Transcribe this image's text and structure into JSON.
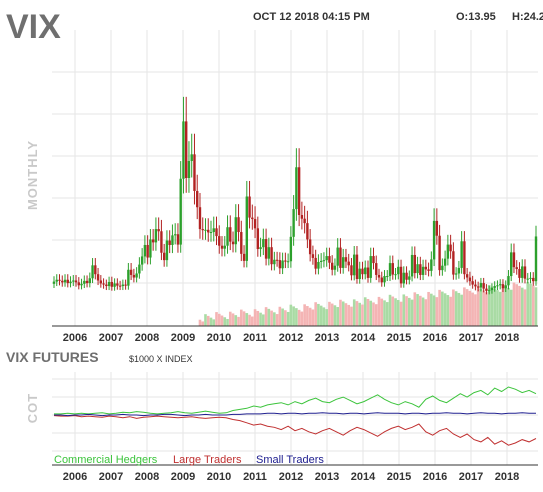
{
  "header": {
    "symbol": "VIX",
    "timestamp": "OCT 12 2018 04:15 PM",
    "open": "O:13.95",
    "high": "H:24.2"
  },
  "colors": {
    "up": "#2ca02c",
    "down": "#b22222",
    "vol_up": "#a9dba4",
    "vol_down": "#f4b4b4",
    "commercial": "#3cc43c",
    "large": "#c03030",
    "small": "#202090",
    "grid": "#e6e6e6"
  },
  "chart_data": [
    {
      "type": "candlestick",
      "panel": "price",
      "ylabel": "MONTHLY",
      "x_start": "2005-06",
      "interval": "month",
      "ylim": [
        0,
        80
      ],
      "x_tick_labels": [
        "2006",
        "2007",
        "2008",
        "2009",
        "2010",
        "2011",
        "2012",
        "2013",
        "2014",
        "2015",
        "2016",
        "2017",
        "2018"
      ],
      "closes": [
        12.0,
        12.5,
        12.2,
        11.8,
        12.5,
        11.6,
        12.0,
        12.3,
        11.8,
        11.0,
        11.4,
        12.2,
        11.6,
        12.9,
        16.4,
        14.0,
        12.3,
        11.5,
        11.2,
        10.8,
        11.9,
        10.6,
        11.5,
        10.9,
        10.8,
        11.2,
        10.9,
        15.2,
        13.8,
        13.1,
        14.2,
        16.6,
        18.8,
        21.9,
        18.5,
        23.4,
        22.6,
        26.2,
        25.6,
        19.8,
        17.8,
        23.1,
        21.9,
        24.5,
        24.8,
        22.0,
        39.8,
        55.3,
        40.0,
        44.6,
        46.4,
        36.5,
        32.1,
        26.2,
        25.9,
        26.0,
        25.3,
        25.4,
        26.4,
        24.3,
        21.7,
        20.9,
        21.7,
        26.7,
        22.8,
        22.1,
        29.4,
        25.4,
        19.5,
        17.6,
        35.0,
        29.3,
        28.9,
        26.4,
        20.8,
        21.3,
        23.5,
        18.2,
        21.3,
        16.7,
        17.9,
        17.8,
        15.6,
        17.7,
        17.4,
        17.5,
        24.1,
        31.6,
        42.9,
        30.0,
        29.0,
        27.8,
        23.4,
        19.4,
        18.4,
        15.5,
        17.3,
        17.6,
        17.8,
        18.9,
        17.1,
        15.2,
        16.3,
        21.2,
        15.7,
        18.6,
        17.4,
        16.4,
        13.7,
        19.3,
        12.7,
        15.5,
        14.0,
        15.8,
        13.0,
        18.9,
        17.0,
        13.8,
        13.1,
        11.8,
        13.5,
        13.5,
        17.0,
        13.9,
        14.0,
        16.0,
        11.5,
        14.4,
        12.5,
        13.4,
        19.2,
        14.3,
        16.7,
        13.8,
        16.0,
        15.3,
        14.9,
        18.0,
        28.4,
        24.4,
        15.1,
        16.3,
        18.2,
        22.0,
        20.2,
        13.9,
        14.2,
        15.7,
        22.9,
        14.0,
        13.1,
        12.1,
        11.2,
        10.7,
        10.4,
        11.6,
        10.1,
        9.5,
        9.7,
        10.3,
        10.8,
        11.0,
        11.3,
        10.2,
        11.0,
        13.5,
        19.9,
        15.9,
        15.4,
        13.0,
        16.1,
        12.8,
        12.8,
        13.0,
        12.1,
        24.2
      ],
      "x": "monthly from 2005-06 to 2018-10",
      "volume_unit": "relative"
    },
    {
      "type": "line",
      "panel": "cot",
      "title": "VIX FUTURES",
      "subtitle": "$1000 X INDEX",
      "ylabel": "COT",
      "x_tick_labels": [
        "2006",
        "2007",
        "2008",
        "2009",
        "2010",
        "2011",
        "2012",
        "2013",
        "2014",
        "2015",
        "2016",
        "2017",
        "2018"
      ],
      "series": [
        {
          "name": "Commercial Hedgers",
          "values": [
            2,
            2,
            3,
            2,
            3,
            2,
            3,
            4,
            2,
            3,
            5,
            4,
            6,
            5,
            3,
            2,
            3,
            4,
            6,
            4,
            3,
            5,
            7,
            5,
            3,
            4,
            8,
            10,
            12,
            16,
            14,
            18,
            20,
            22,
            18,
            24,
            20,
            26,
            30,
            24,
            22,
            28,
            32,
            26,
            20,
            24,
            30,
            36,
            28,
            22,
            18,
            24,
            20,
            14,
            28,
            34,
            26,
            22,
            30,
            38,
            32,
            40,
            44,
            36,
            48,
            42,
            50,
            46,
            40,
            44,
            38
          ]
        },
        {
          "name": "Large Traders",
          "values": [
            -1,
            -2,
            -2,
            -1,
            -3,
            -2,
            -3,
            -4,
            -2,
            -3,
            -5,
            -3,
            -6,
            -4,
            -3,
            -2,
            -3,
            -4,
            -5,
            -4,
            -3,
            -5,
            -6,
            -5,
            -4,
            -5,
            -8,
            -10,
            -14,
            -18,
            -16,
            -20,
            -22,
            -26,
            -20,
            -28,
            -24,
            -30,
            -34,
            -28,
            -24,
            -30,
            -36,
            -28,
            -22,
            -26,
            -32,
            -38,
            -30,
            -24,
            -20,
            -26,
            -22,
            -16,
            -30,
            -36,
            -28,
            -24,
            -34,
            -40,
            -34,
            -44,
            -48,
            -40,
            -52,
            -46,
            -54,
            -50,
            -44,
            -48,
            -42
          ]
        },
        {
          "name": "Small Traders",
          "values": [
            0,
            0,
            -1,
            0,
            0,
            1,
            0,
            -1,
            0,
            0,
            1,
            0,
            0,
            -1,
            0,
            0,
            1,
            1,
            0,
            -1,
            0,
            0,
            1,
            0,
            0,
            0,
            1,
            1,
            2,
            2,
            2,
            3,
            3,
            2,
            3,
            3,
            2,
            3,
            3,
            4,
            3,
            3,
            2,
            3,
            3,
            2,
            3,
            4,
            3,
            3,
            3,
            2,
            3,
            3,
            2,
            3,
            3,
            4,
            3,
            3,
            2,
            3,
            4,
            3,
            3,
            2,
            3,
            3,
            4,
            3,
            3
          ]
        }
      ]
    }
  ],
  "legend": {
    "commercial": "Commercial Hedgers",
    "large": "Large Traders",
    "small": "Small Traders"
  }
}
